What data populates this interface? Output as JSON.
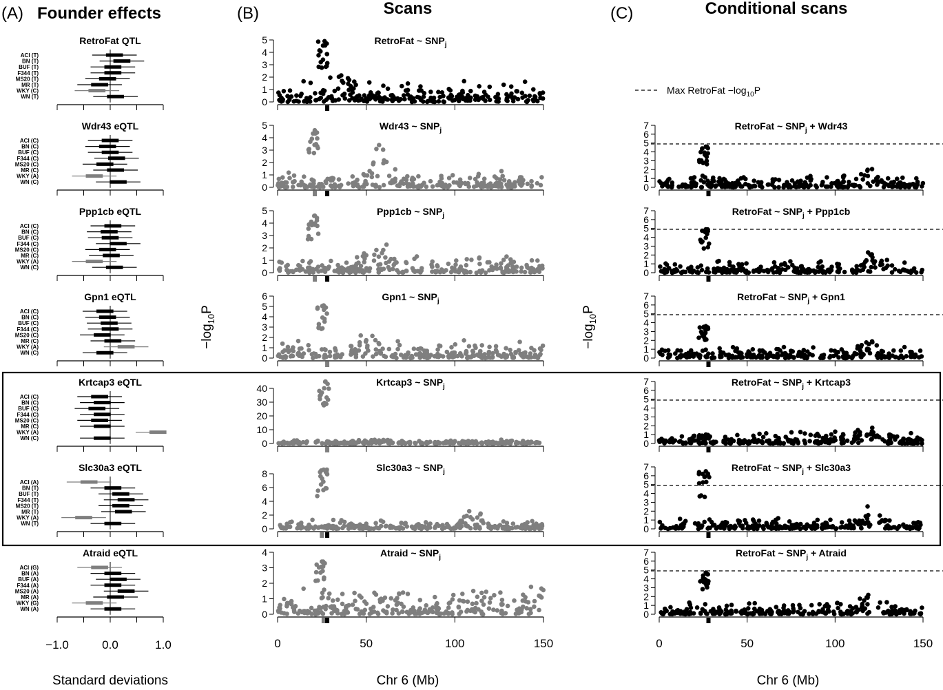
{
  "headers": {
    "a_letter": "(A)",
    "a_title": "Founder effects",
    "b_letter": "(B)",
    "b_title": "Scans",
    "c_letter": "(C)",
    "c_title": "Conditional scans"
  },
  "axis_labels": {
    "a_x": "Standard deviations",
    "b_x": "Chr 6 (Mb)",
    "c_x": "Chr 6 (Mb)",
    "y_main": "−log",
    "y_sub": "10",
    "y_end": "P"
  },
  "legend": {
    "label_main": "Max RetroFat −log",
    "label_sub": "10",
    "label_end": "P"
  },
  "colors": {
    "black": "#000000",
    "grey": "#7f7f7f"
  },
  "chart_data": [
    {
      "panel": "A",
      "type": "forest",
      "xlim": [
        -1.0,
        1.0
      ],
      "x_ticks": [
        -1.0,
        -0.5,
        0.0,
        0.5,
        1.0
      ],
      "x_tick_labels": [
        "−1.0",
        "",
        "0.0",
        "",
        "1.0"
      ],
      "rows": [
        {
          "title": "RetroFat QTL",
          "strains": [
            "ACI (T)",
            "BN (T)",
            "BUF (T)",
            "F344 (T)",
            "MS20 (T)",
            "MR (T)",
            "WKY (C)",
            "WN (T)"
          ],
          "grey": [
            false,
            false,
            false,
            false,
            false,
            false,
            true,
            false
          ],
          "estimates": [
            0.08,
            0.22,
            0.05,
            0.05,
            -0.05,
            -0.2,
            -0.25,
            0.1
          ]
        },
        {
          "title": "Wdr43 eQTL",
          "strains": [
            "ACI (C)",
            "BN (C)",
            "BUF (C)",
            "F344 (C)",
            "MS20 (C)",
            "MR (C)",
            "WKY (A)",
            "WN (C)"
          ],
          "grey": [
            false,
            false,
            false,
            false,
            false,
            false,
            true,
            false
          ],
          "estimates": [
            0.0,
            -0.05,
            0.0,
            0.12,
            -0.1,
            0.1,
            -0.3,
            0.15
          ]
        },
        {
          "title": "Ppp1cb eQTL",
          "strains": [
            "ACI (C)",
            "BN (C)",
            "BUF (C)",
            "F344 (C)",
            "MS20 (C)",
            "MR (C)",
            "WKY (A)",
            "WN (C)"
          ],
          "grey": [
            false,
            false,
            false,
            false,
            false,
            false,
            true,
            false
          ],
          "estimates": [
            0.05,
            -0.02,
            0.0,
            0.15,
            -0.05,
            0.02,
            -0.3,
            0.08
          ]
        },
        {
          "title": "Gpn1 eQTL",
          "strains": [
            "ACI (C)",
            "BN (C)",
            "BUF (C)",
            "F344 (C)",
            "MS20 (C)",
            "MR (C)",
            "WKY (A)",
            "WN (C)"
          ],
          "grey": [
            false,
            false,
            false,
            false,
            false,
            false,
            true,
            false
          ],
          "estimates": [
            -0.1,
            -0.05,
            -0.02,
            0.0,
            -0.15,
            0.05,
            0.3,
            -0.1
          ]
        },
        {
          "title": "Krtcap3 eQTL",
          "strains": [
            "ACI (C)",
            "BN (C)",
            "BUF (C)",
            "F344 (C)",
            "MS20 (C)",
            "MR (C)",
            "WKY (A)",
            "WN (C)"
          ],
          "grey": [
            false,
            false,
            false,
            false,
            false,
            false,
            true,
            false
          ],
          "estimates": [
            -0.2,
            -0.15,
            -0.25,
            -0.15,
            -0.2,
            -0.15,
            0.9,
            -0.15
          ]
        },
        {
          "title": "Slc30a3 eQTL",
          "strains": [
            "ACI (A)",
            "BN (T)",
            "BUF (T)",
            "F344 (T)",
            "MS20 (T)",
            "MR (T)",
            "WKY (A)",
            "WN (T)"
          ],
          "grey": [
            true,
            false,
            false,
            false,
            false,
            false,
            true,
            false
          ],
          "estimates": [
            -0.4,
            0.05,
            0.2,
            0.3,
            0.2,
            0.25,
            -0.5,
            0.05
          ]
        },
        {
          "title": "Atraid eQTL",
          "strains": [
            "ACI (G)",
            "BN (A)",
            "BUF (A)",
            "F344 (A)",
            "MS20 (A)",
            "MR (A)",
            "WKY (G)",
            "WN (A)"
          ],
          "grey": [
            true,
            false,
            false,
            false,
            false,
            false,
            true,
            false
          ],
          "estimates": [
            -0.2,
            0.05,
            0.15,
            0.05,
            0.3,
            0.1,
            -0.3,
            0.05
          ]
        }
      ]
    },
    {
      "panel": "B",
      "type": "scatter",
      "xlim": [
        0,
        150
      ],
      "x_ticks": [
        0,
        50,
        100,
        150
      ],
      "x_tick_labels": [
        "0",
        "50",
        "100",
        "150"
      ],
      "plots": [
        {
          "title_main": "RetroFat ~ SNP",
          "title_sub": "j",
          "color": "black",
          "ymax": 5,
          "y_ticks": [
            0,
            1,
            2,
            3,
            4,
            5
          ],
          "y_tick_labels": [
            "0",
            "1",
            "2",
            "3",
            "4",
            "5"
          ],
          "peak_pos": 26.5,
          "peak_y": 4.9,
          "baseline": 0.5,
          "band_y": 1.2,
          "lobe_pos": 36,
          "lobe_y": 2.3,
          "markers": [
            {
              "x": 28,
              "grey": false
            }
          ]
        },
        {
          "title_main": "Wdr43 ~ SNP",
          "title_sub": "j",
          "color": "grey",
          "ymax": 5,
          "y_ticks": [
            0,
            1,
            2,
            3,
            4,
            5
          ],
          "y_tick_labels": [
            "0",
            "1",
            "2",
            "3",
            "4",
            "5"
          ],
          "peak_pos": 21,
          "peak_y": 4.6,
          "baseline": 0.4,
          "band_y": 0.9,
          "lobe_pos": 58,
          "lobe_y": 3.2,
          "markers": [
            {
              "x": 21,
              "grey": true
            },
            {
              "x": 28,
              "grey": false
            }
          ]
        },
        {
          "title_main": "Ppp1cb ~ SNP",
          "title_sub": "j",
          "color": "grey",
          "ymax": 5,
          "y_ticks": [
            0,
            1,
            2,
            3,
            4,
            5
          ],
          "y_tick_labels": [
            "0",
            "1",
            "2",
            "3",
            "4",
            "5"
          ],
          "peak_pos": 21,
          "peak_y": 4.6,
          "baseline": 0.4,
          "band_y": 1.0,
          "lobe_pos": 59,
          "lobe_y": 2.3,
          "markers": [
            {
              "x": 21,
              "grey": true
            },
            {
              "x": 28,
              "grey": false
            }
          ]
        },
        {
          "title_main": "Gpn1 ~ SNP",
          "title_sub": "j",
          "color": "grey",
          "ymax": 6,
          "y_ticks": [
            0,
            1,
            2,
            3,
            4,
            5,
            6
          ],
          "y_tick_labels": [
            "0",
            "1",
            "2",
            "3",
            "4",
            "5",
            "6"
          ],
          "peak_pos": 26,
          "peak_y": 5.1,
          "baseline": 0.5,
          "band_y": 1.2,
          "lobe_pos": 50,
          "lobe_y": 1.8,
          "markers": [
            {
              "x": 28,
              "grey": true
            }
          ]
        },
        {
          "title_main": "Krtcap3 ~ SNP",
          "title_sub": "j",
          "color": "grey",
          "ymax": 45,
          "y_ticks": [
            0,
            10,
            20,
            30,
            40
          ],
          "y_tick_labels": [
            "0",
            "10",
            "20",
            "30",
            "40"
          ],
          "peak_pos": 27,
          "peak_y": 45,
          "baseline": 0.8,
          "band_y": 1.8,
          "lobe_pos": 60,
          "lobe_y": 2.0,
          "markers": [
            {
              "x": 28,
              "grey": true
            }
          ]
        },
        {
          "title_main": "Slc30a3 ~ SNP",
          "title_sub": "j",
          "color": "grey",
          "ymax": 9,
          "y_ticks": [
            0,
            2,
            4,
            6,
            8
          ],
          "y_tick_labels": [
            "0",
            "2",
            "4",
            "6",
            "8"
          ],
          "peak_pos": 26,
          "peak_y": 8.6,
          "baseline": 0.4,
          "band_y": 0.9,
          "lobe_pos": 110,
          "lobe_y": 2.7,
          "markers": [
            {
              "x": 25,
              "grey": true
            },
            {
              "x": 28,
              "grey": false
            }
          ]
        },
        {
          "title_main": "Atraid ~ SNP",
          "title_sub": "j",
          "color": "grey",
          "ymax": 4,
          "y_ticks": [
            0,
            1,
            2,
            3,
            4
          ],
          "y_tick_labels": [
            "0",
            "1",
            "2",
            "3",
            "4"
          ],
          "peak_pos": 25,
          "peak_y": 3.4,
          "baseline": 0.4,
          "band_y": 1.2,
          "lobe_pos": 145,
          "lobe_y": 2.0,
          "markers": [
            {
              "x": 26,
              "grey": true
            },
            {
              "x": 28,
              "grey": false
            }
          ]
        }
      ]
    },
    {
      "panel": "C",
      "type": "scatter",
      "xlim": [
        0,
        150
      ],
      "x_ticks": [
        0,
        50,
        100,
        150
      ],
      "x_tick_labels": [
        "0",
        "50",
        "100",
        "150"
      ],
      "ymax": 7,
      "y_ticks": [
        0,
        1,
        2,
        3,
        4,
        5,
        6,
        7
      ],
      "y_tick_labels": [
        "0",
        "1",
        "2",
        "3",
        "4",
        "5",
        "6",
        "7"
      ],
      "reference_line_y": 4.9,
      "plots": [
        {
          "title_main": "RetroFat ~ SNP",
          "title_sub": "j",
          "title_end": " + Wdr43",
          "peak_y": 4.6
        },
        {
          "title_main": "RetroFat ~ SNP",
          "title_sub": "j",
          "title_end": " + Ppp1cb",
          "peak_y": 4.9
        },
        {
          "title_main": "RetroFat ~ SNP",
          "title_sub": "j",
          "title_end": " + Gpn1",
          "peak_y": 3.6
        },
        {
          "title_main": "RetroFat ~ SNP",
          "title_sub": "j",
          "title_end": " + Krtcap3",
          "peak_y": 1.0
        },
        {
          "title_main": "RetroFat ~ SNP",
          "title_sub": "j",
          "title_end": " + Slc30a3",
          "peak_y": 6.5
        },
        {
          "title_main": "RetroFat ~ SNP",
          "title_sub": "j",
          "title_end": " + Atraid",
          "peak_y": 4.7
        }
      ]
    }
  ]
}
